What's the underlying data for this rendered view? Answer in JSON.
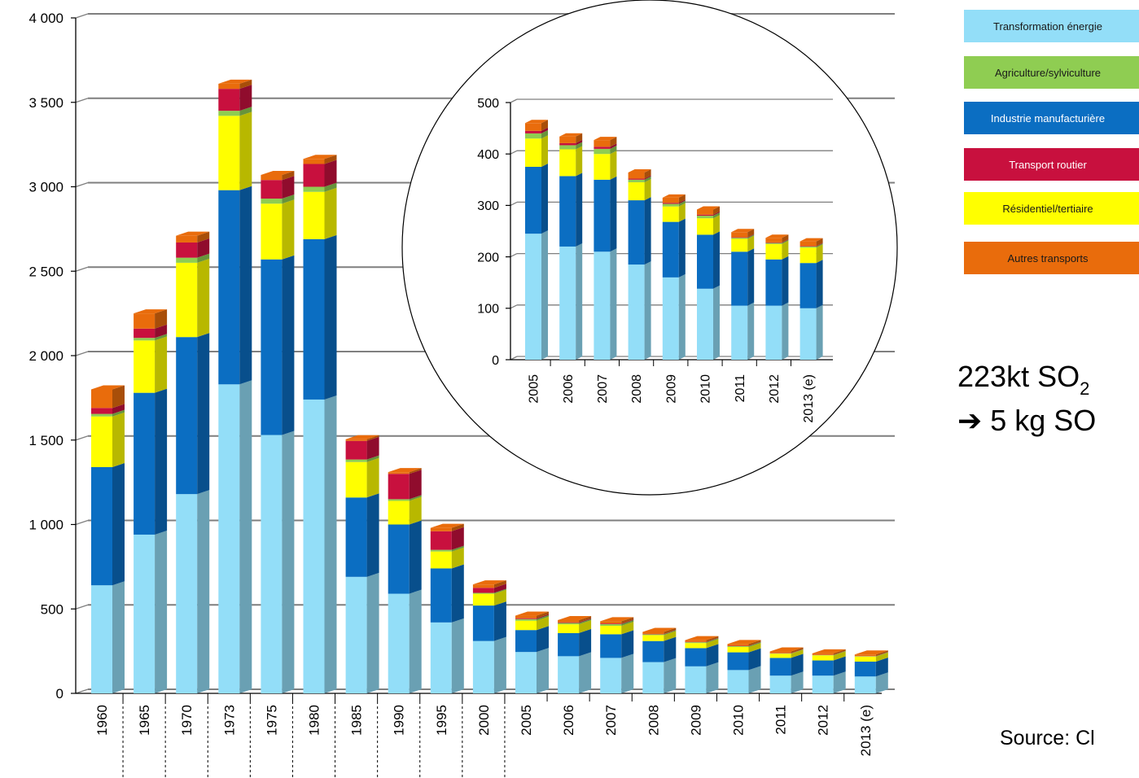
{
  "legend": [
    {
      "label": "Transformation énergie",
      "color": "#93def8",
      "dark": false
    },
    {
      "label": "Agriculture/sylviculture",
      "color": "#8fcd52",
      "dark": false
    },
    {
      "label": "Industrie manufacturière",
      "color": "#0b6ec2",
      "dark": true
    },
    {
      "label": "Transport routier",
      "color": "#c8103e",
      "dark": true
    },
    {
      "label": "Résidentiel/tertiaire",
      "color": "#ffff00",
      "dark": false
    },
    {
      "label": "Autres transports",
      "color": "#e96c0c",
      "dark": false
    }
  ],
  "note": {
    "line1_text": "223kt SO",
    "line1_sub": "2",
    "line2_arrow": "➔",
    "line2_text": "5 kg SO"
  },
  "source": "Source: Cl",
  "chart_data": [
    {
      "type": "bar",
      "stacked": true,
      "categories": [
        "1960",
        "1965",
        "1970",
        "1973",
        "1975",
        "1980",
        "1985",
        "1990",
        "1995",
        "2000",
        "2005",
        "2006",
        "2007",
        "2008",
        "2009",
        "2010",
        "2011",
        "2012",
        "2013 (e)"
      ],
      "ylim": [
        0,
        4000
      ],
      "yticks": [
        0,
        500,
        1000,
        1500,
        2000,
        2500,
        3000,
        3500,
        4000
      ],
      "ytick_labels": [
        "0",
        "500",
        "1 000",
        "1 500",
        "2 000",
        "2 500",
        "3 000",
        "3 500",
        "4 000"
      ],
      "grid": true,
      "series": [
        {
          "name": "Transformation énergie",
          "color": "#93def8",
          "values": [
            640,
            940,
            1180,
            1830,
            1530,
            1740,
            690,
            590,
            420,
            310,
            245,
            220,
            210,
            185,
            160,
            138,
            105,
            105,
            100
          ]
        },
        {
          "name": "Industrie manufacturière",
          "color": "#0b6ec2",
          "values": [
            700,
            840,
            930,
            1150,
            1040,
            950,
            470,
            410,
            320,
            210,
            130,
            137,
            140,
            125,
            108,
            105,
            105,
            90,
            88
          ]
        },
        {
          "name": "Résidentiel/tertiaire",
          "color": "#ffff00",
          "values": [
            300,
            310,
            440,
            440,
            330,
            280,
            210,
            140,
            100,
            70,
            55,
            52,
            50,
            35,
            30,
            32,
            25,
            30,
            30
          ]
        },
        {
          "name": "Agriculture/sylviculture",
          "color": "#8fcd52",
          "values": [
            15,
            15,
            30,
            30,
            30,
            30,
            15,
            10,
            10,
            5,
            10,
            8,
            10,
            5,
            5,
            5,
            2,
            2,
            2
          ]
        },
        {
          "name": "Transport routier",
          "color": "#c8103e",
          "values": [
            35,
            55,
            90,
            130,
            110,
            135,
            110,
            150,
            110,
            30,
            5,
            4,
            4,
            2,
            2,
            2,
            1,
            1,
            1
          ]
        },
        {
          "name": "Autres transports",
          "color": "#e96c0c",
          "values": [
            110,
            90,
            40,
            30,
            30,
            30,
            10,
            10,
            20,
            20,
            15,
            13,
            13,
            12,
            10,
            10,
            10,
            9,
            9
          ]
        }
      ]
    },
    {
      "type": "bar",
      "stacked": true,
      "categories": [
        "2005",
        "2006",
        "2007",
        "2008",
        "2009",
        "2010",
        "2011",
        "2012",
        "2013 (e)"
      ],
      "ylim": [
        0,
        500
      ],
      "yticks": [
        0,
        100,
        200,
        300,
        400,
        500
      ],
      "ytick_labels": [
        "0",
        "100",
        "200",
        "300",
        "400",
        "500"
      ],
      "grid": true,
      "series": [
        {
          "name": "Transformation énergie",
          "color": "#93def8",
          "values": [
            245,
            220,
            210,
            185,
            160,
            138,
            105,
            105,
            100
          ]
        },
        {
          "name": "Industrie manufacturière",
          "color": "#0b6ec2",
          "values": [
            130,
            137,
            140,
            125,
            108,
            105,
            105,
            90,
            88
          ]
        },
        {
          "name": "Résidentiel/tertiaire",
          "color": "#ffff00",
          "values": [
            55,
            52,
            50,
            35,
            30,
            32,
            25,
            30,
            30
          ]
        },
        {
          "name": "Agriculture/sylviculture",
          "color": "#8fcd52",
          "values": [
            10,
            8,
            10,
            5,
            5,
            5,
            2,
            2,
            2
          ]
        },
        {
          "name": "Transport routier",
          "color": "#c8103e",
          "values": [
            5,
            4,
            4,
            2,
            2,
            2,
            1,
            1,
            1
          ]
        },
        {
          "name": "Autres transports",
          "color": "#e96c0c",
          "values": [
            15,
            13,
            13,
            12,
            10,
            10,
            10,
            9,
            9
          ]
        }
      ]
    }
  ]
}
